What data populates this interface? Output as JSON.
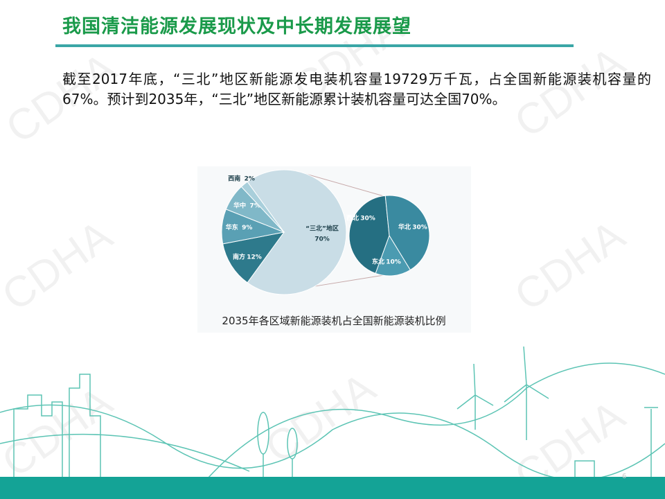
{
  "title": "我国清洁能源发展现状及中长期发展展望",
  "text": "截至2017年底，“三北”地区新能源发电装机容量19729万千瓦，占全国新能源装机容量的67%。预计到2035年，“三北”地区新能源累计装机容量可达全国70%。",
  "watermark": "CDHA",
  "page_number": "6",
  "chart_data": {
    "type": "pie",
    "title": "2035年各区域新能源装机占全国新能源装机比例",
    "categories": [
      "“三北”地区",
      "南方",
      "华东",
      "华中",
      "西南"
    ],
    "values": [
      70,
      12,
      9,
      7,
      2
    ],
    "value_labels": [
      "70%",
      "12%",
      "9%",
      "7%",
      "2%"
    ],
    "colors": [
      "#c9dde6",
      "#2e7a8c",
      "#5aa0b4",
      "#80b8c8",
      "#a9cfdb"
    ],
    "breakdown": {
      "categories": [
        "西北",
        "华北",
        "东北"
      ],
      "values": [
        30,
        30,
        10
      ],
      "value_labels": [
        "30%",
        "30%",
        "10%"
      ],
      "colors": [
        "#256f82",
        "#3a8aa0",
        "#4b9bb1"
      ]
    }
  }
}
